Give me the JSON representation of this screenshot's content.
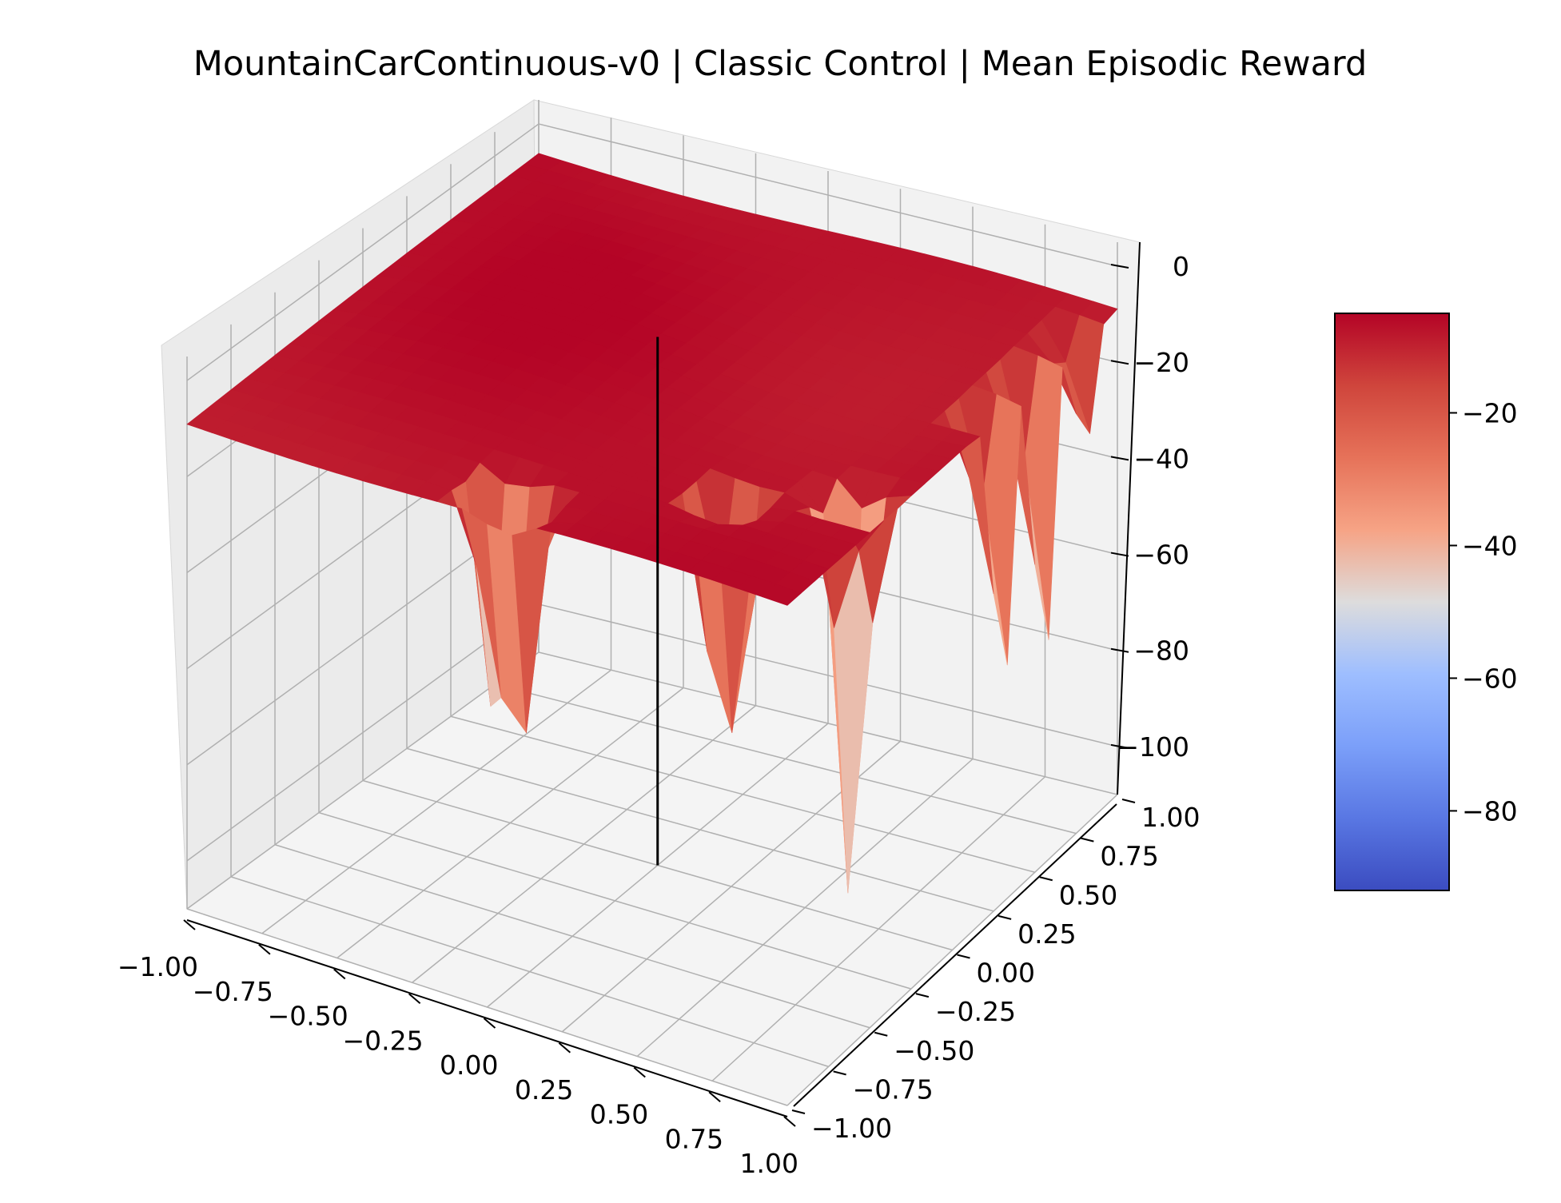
{
  "chart_data": {
    "type": "surface",
    "title": "MountainCarContinuous-v0 | Classic Control | Mean Episodic Reward",
    "xlabel": "",
    "ylabel": "",
    "zlabel": "",
    "x_ticks": [
      "−1.00",
      "−0.75",
      "−0.50",
      "−0.25",
      "0.00",
      "0.25",
      "0.50",
      "0.75",
      "1.00"
    ],
    "y_ticks": [
      "−1.00",
      "−0.75",
      "−0.50",
      "−0.25",
      "0.00",
      "0.25",
      "0.50",
      "0.75",
      "1.00"
    ],
    "z_ticks": [
      "−100",
      "−80",
      "−60",
      "−40",
      "−20",
      "0"
    ],
    "z_tick_values": [
      -100,
      -80,
      -60,
      -40,
      -20,
      0
    ],
    "xlim": [
      -1.0,
      1.0
    ],
    "ylim": [
      -1.0,
      1.0
    ],
    "zlim": [
      -110,
      5
    ],
    "grid": true,
    "colormap": "coolwarm",
    "colorbar": {
      "placement": "right",
      "ticks": [
        "−20",
        "−40",
        "−60",
        "−80"
      ],
      "tick_values": [
        -20,
        -40,
        -60,
        -80
      ],
      "range": [
        -92,
        -5
      ]
    },
    "plateau_reward": -6,
    "minimum_reward": -103,
    "marker_line": {
      "x": 0.0,
      "y": 0.0,
      "z_from": -110,
      "z_to": 0
    },
    "wells": [
      {
        "x": 0.55,
        "y": -0.55,
        "z": -95
      },
      {
        "x": 0.85,
        "y": -0.35,
        "z": -103
      },
      {
        "x": 0.98,
        "y": 0.3,
        "z": -88
      },
      {
        "x": 0.98,
        "y": 0.55,
        "z": -92
      },
      {
        "x": 0.98,
        "y": 0.8,
        "z": -38
      },
      {
        "x": -0.05,
        "y": -0.85,
        "z": -75
      },
      {
        "x": 0.05,
        "y": -0.9,
        "z": -75
      }
    ]
  },
  "colors": {
    "cmap_low": "#3b4cc0",
    "cmap_mid": "#dddddd",
    "cmap_high": "#b40426",
    "pane": "#f2f2f2",
    "grid": "#b0b0b0",
    "marker": "#000000"
  }
}
